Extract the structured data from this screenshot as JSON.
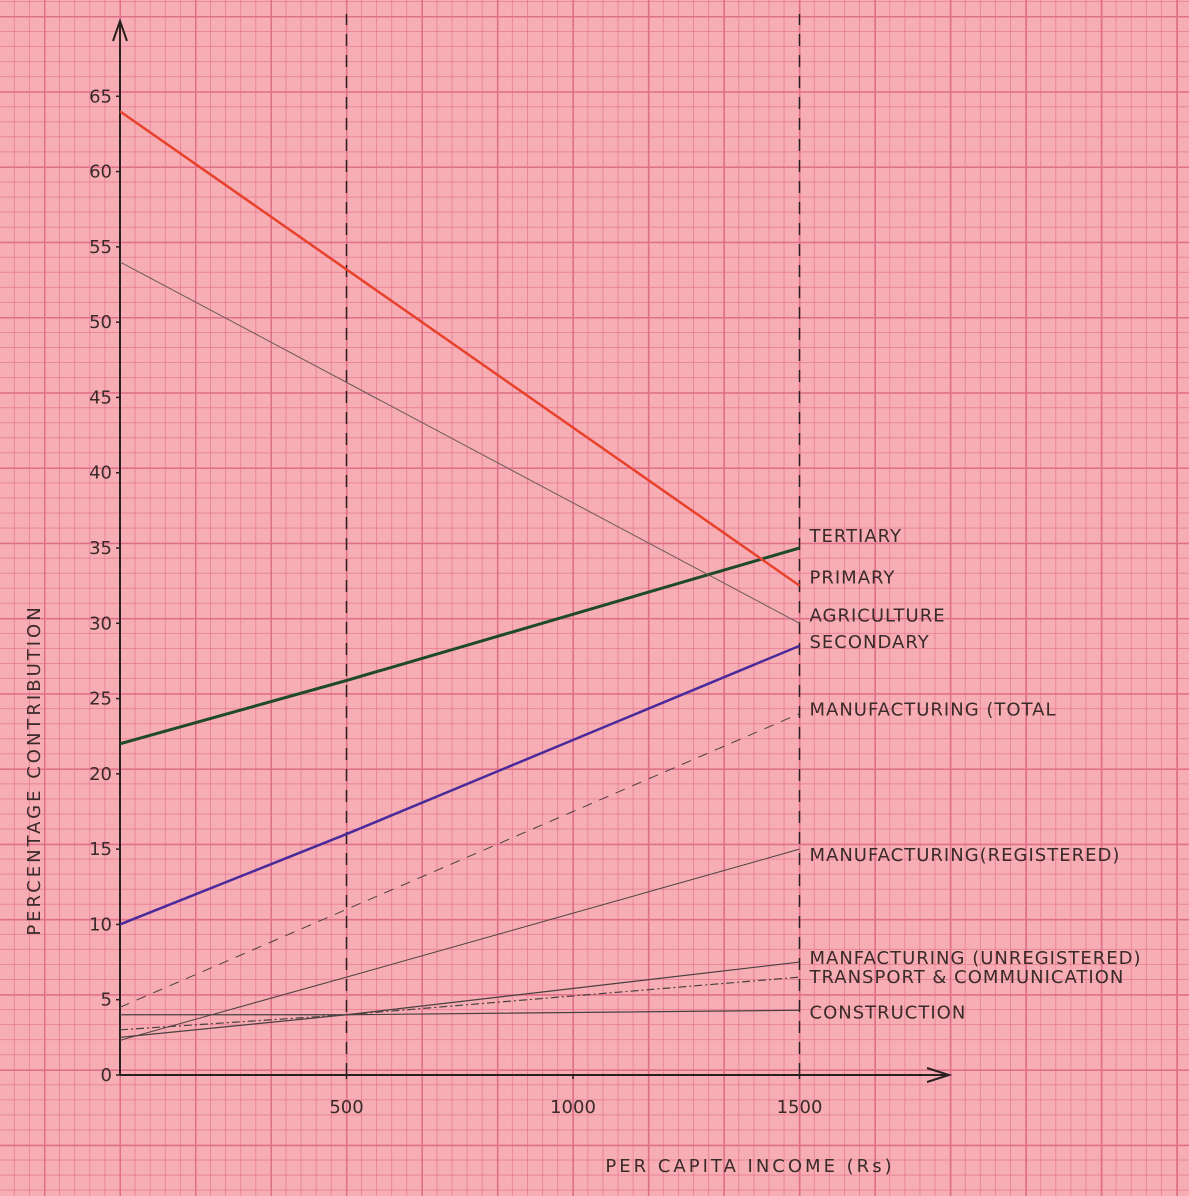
{
  "chart_data": {
    "type": "line",
    "x_label": "PER CAPITA INCOME (Rs)",
    "y_label": "PERCENTAGE CONTRIBUTION",
    "xlim": [
      0,
      1830
    ],
    "ylim": [
      0,
      70
    ],
    "xticks": [
      500,
      1000,
      1500
    ],
    "yticks": [
      0,
      5,
      10,
      15,
      20,
      25,
      30,
      35,
      40,
      45,
      50,
      55,
      60,
      65
    ],
    "dashed_x": [
      500,
      1500
    ],
    "x": [
      0,
      500,
      1500
    ],
    "series": [
      {
        "name": "TERTIARY",
        "color": "#1f4a2a",
        "width": 3,
        "values": [
          22,
          26.2,
          35
        ]
      },
      {
        "name": "PRIMARY",
        "color": "#e8412c",
        "width": 2.5,
        "values": [
          64,
          53.5,
          32.5
        ]
      },
      {
        "name": "AGRICULTURE",
        "color": "#6b5a5a",
        "width": 1,
        "values": [
          54,
          46,
          30
        ]
      },
      {
        "name": "SECONDARY",
        "color": "#4a2a9a",
        "width": 2.5,
        "values": [
          10,
          16,
          28.5
        ]
      },
      {
        "name": "MANUFACTURING (TOTAL",
        "color": "#4a4040",
        "width": 1,
        "dash": "10 8",
        "values": [
          4.5,
          11,
          24
        ]
      },
      {
        "name": "MANUFACTURING(REGISTERED)",
        "color": "#4a4040",
        "width": 1,
        "values": [
          2.3,
          6.5,
          15
        ]
      },
      {
        "name": "MANFACTURING (UNREGISTERED)",
        "color": "#4a4040",
        "width": 1.2,
        "values": [
          2.5,
          4,
          7.5
        ]
      },
      {
        "name": "TRANSPORT & COMMUNICATION",
        "color": "#4a4040",
        "width": 1.2,
        "dash": "8 3 2 3",
        "values": [
          3,
          4,
          6.5
        ]
      },
      {
        "name": "CONSTRUCTION",
        "color": "#4a4040",
        "width": 1.2,
        "values": [
          4,
          4,
          4.3
        ]
      }
    ]
  }
}
